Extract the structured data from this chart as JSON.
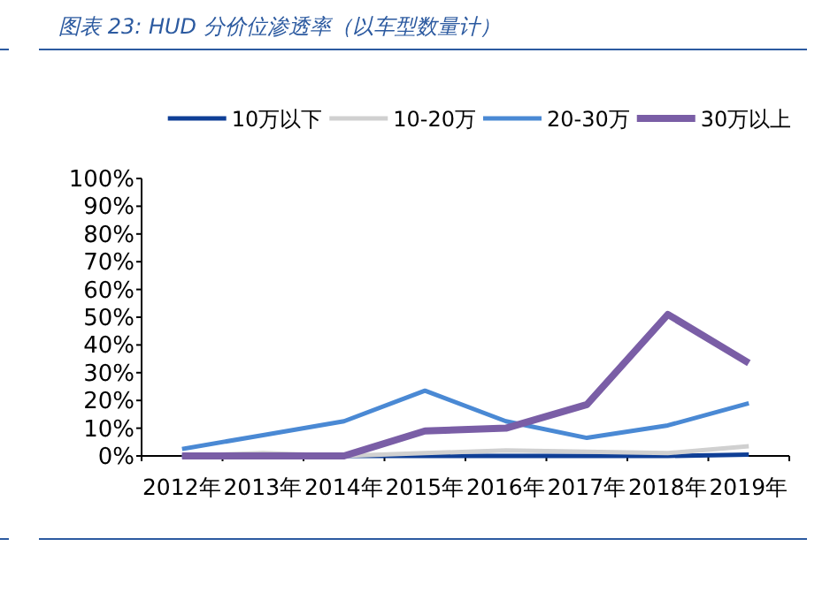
{
  "chart_data": {
    "type": "line",
    "title": "图表 23:  HUD 分价位渗透率（以车型数量计）",
    "categories": [
      "2012年",
      "2013年",
      "2014年",
      "2015年",
      "2016年",
      "2017年",
      "2018年",
      "2019年"
    ],
    "series": [
      {
        "name": "10万以下",
        "color": "#0f3f96",
        "values": [
          0,
          0,
          0,
          0,
          0,
          0,
          0,
          0.5
        ]
      },
      {
        "name": "10-20万",
        "color": "#d0d0d0",
        "values": [
          0,
          1,
          0,
          1,
          2,
          1.5,
          1,
          3.5
        ]
      },
      {
        "name": "20-30万",
        "color": "#4a89d4",
        "values": [
          2.5,
          7.5,
          12.5,
          23.5,
          12.5,
          6.5,
          11,
          19
        ]
      },
      {
        "name": "30万以上",
        "color": "#7a5ea6",
        "values": [
          0,
          0,
          0,
          9,
          10,
          18.5,
          51,
          33.5
        ]
      }
    ],
    "ylim": [
      0,
      100
    ],
    "yticks": [
      {
        "value": 0,
        "label": "0%"
      },
      {
        "value": 10,
        "label": "10%"
      },
      {
        "value": 20,
        "label": "20%"
      },
      {
        "value": 30,
        "label": "30%"
      },
      {
        "value": 40,
        "label": "40%"
      },
      {
        "value": 50,
        "label": "50%"
      },
      {
        "value": 60,
        "label": "60%"
      },
      {
        "value": 70,
        "label": "70%"
      },
      {
        "value": 80,
        "label": "80%"
      },
      {
        "value": 90,
        "label": "90%"
      },
      {
        "value": 100,
        "label": "100%"
      }
    ],
    "grid": false,
    "legend": "top",
    "marker": "none",
    "line_style": "solid"
  }
}
